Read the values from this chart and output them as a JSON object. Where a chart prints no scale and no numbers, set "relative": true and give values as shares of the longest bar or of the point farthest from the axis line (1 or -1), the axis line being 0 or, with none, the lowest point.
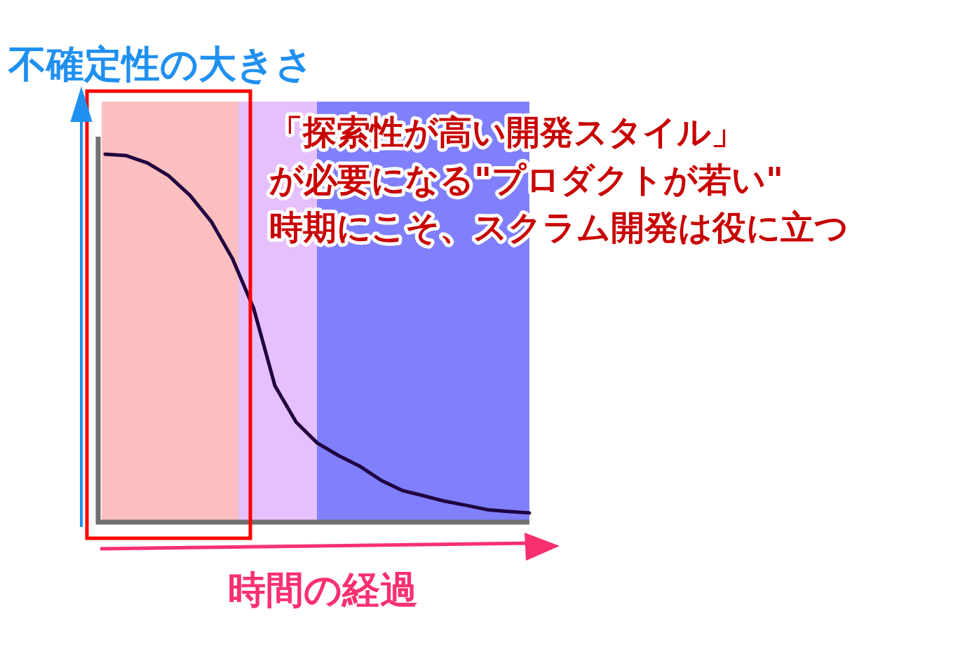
{
  "chart_data": {
    "type": "line",
    "relative": true,
    "xlabel": "時間の経過",
    "ylabel": "不確定性の大きさ",
    "annotations": [
      "「探索性が高い開発スタイル」",
      "が必要になる\"プロダクトが若い\"",
      "時期にこそ、スクラム開発は役に立つ"
    ],
    "categories": [
      null,
      null,
      null,
      null,
      null,
      null,
      null,
      null,
      null,
      null,
      null,
      null,
      null,
      null,
      null,
      null,
      null,
      null,
      null,
      null,
      null
    ],
    "series": [
      {
        "color": "#200040",
        "values": [
          1,
          0.996,
          0.976,
          0.941,
          0.888,
          0.817,
          0.716,
          0.581,
          0.371,
          0.272,
          0.215,
          0.181,
          0.152,
          0.114,
          0.086,
          0.072,
          0.057,
          0.046,
          0.034,
          0.029,
          0.025
        ]
      }
    ]
  }
}
